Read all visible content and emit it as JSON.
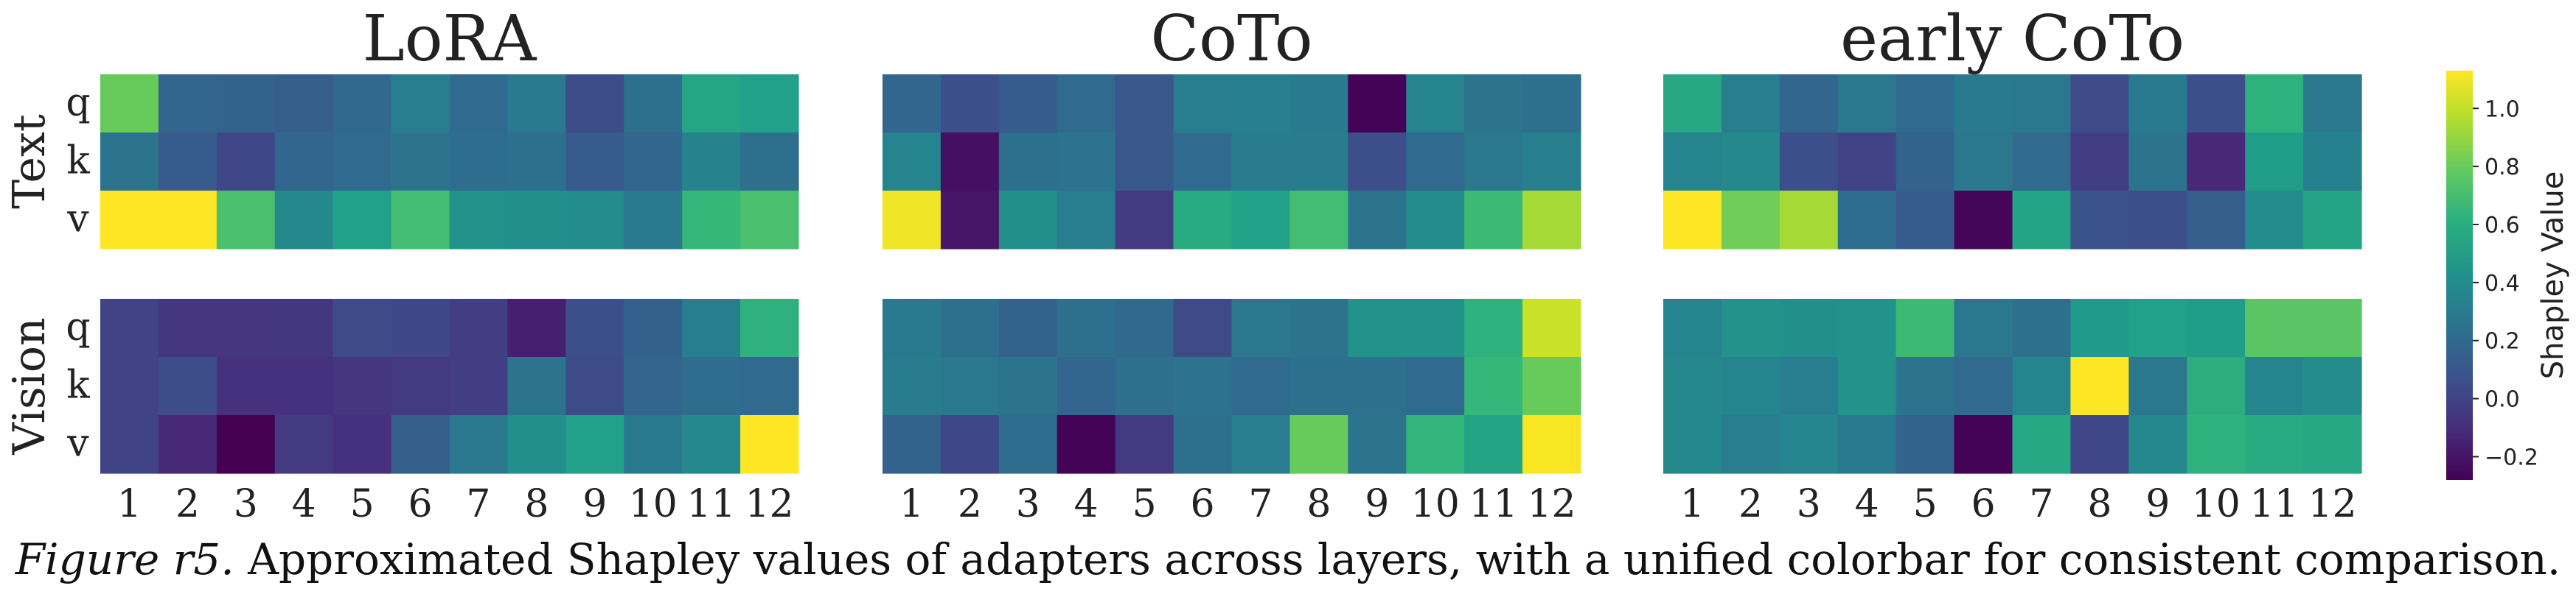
{
  "caption": {
    "figure_tag": "Figure r5.",
    "text": " Approximated Shapley values of adapters across layers, with a unified colorbar for consistent comparison."
  },
  "chart_data": {
    "type": "heatmap",
    "layers": [
      "1",
      "2",
      "3",
      "4",
      "5",
      "6",
      "7",
      "8",
      "9",
      "10",
      "11",
      "12"
    ],
    "groups": [
      {
        "name": "Text",
        "rows": [
          "q",
          "k",
          "v"
        ]
      },
      {
        "name": "Vision",
        "rows": [
          "q",
          "k",
          "v"
        ]
      }
    ],
    "colorbar": {
      "label": "Shapley Value",
      "range": [
        -0.28,
        1.13
      ],
      "ticks": [
        "1.0",
        "0.8",
        "0.6",
        "0.4",
        "0.2",
        "0.0",
        "−0.2"
      ],
      "tick_values": [
        1.0,
        0.8,
        0.6,
        0.4,
        0.2,
        0.0,
        -0.2
      ],
      "colormap": "viridis"
    },
    "panels": [
      {
        "title": "LoRA",
        "text": {
          "q": [
            0.8,
            0.18,
            0.16,
            0.14,
            0.19,
            0.32,
            0.2,
            0.3,
            0.05,
            0.24,
            0.55,
            0.52
          ],
          "k": [
            0.26,
            0.12,
            0.02,
            0.18,
            0.2,
            0.26,
            0.22,
            0.24,
            0.12,
            0.18,
            0.35,
            0.23
          ],
          "v": [
            1.13,
            1.13,
            0.72,
            0.38,
            0.52,
            0.7,
            0.44,
            0.42,
            0.4,
            0.3,
            0.66,
            0.72
          ]
        },
        "vision": {
          "q": [
            0.0,
            -0.06,
            -0.06,
            -0.05,
            0.04,
            0.02,
            -0.02,
            -0.16,
            0.06,
            0.15,
            0.33,
            0.62
          ],
          "k": [
            0.0,
            0.05,
            -0.08,
            -0.08,
            -0.06,
            -0.04,
            -0.02,
            0.26,
            0.04,
            0.17,
            0.22,
            0.2
          ],
          "v": [
            0.0,
            -0.12,
            -0.28,
            -0.04,
            -0.08,
            0.14,
            0.28,
            0.42,
            0.52,
            0.3,
            0.38,
            1.13
          ]
        }
      },
      {
        "title": "CoTo",
        "text": {
          "q": [
            0.18,
            0.06,
            0.12,
            0.2,
            0.1,
            0.32,
            0.33,
            0.3,
            -0.27,
            0.36,
            0.26,
            0.24
          ],
          "k": [
            0.36,
            -0.22,
            0.24,
            0.25,
            0.1,
            0.2,
            0.31,
            0.31,
            0.06,
            0.2,
            0.28,
            0.33
          ],
          "v": [
            1.1,
            -0.2,
            0.42,
            0.32,
            -0.04,
            0.58,
            0.52,
            0.7,
            0.26,
            0.4,
            0.68,
            0.94
          ]
        },
        "vision": {
          "q": [
            0.3,
            0.24,
            0.16,
            0.24,
            0.19,
            0.04,
            0.28,
            0.26,
            0.44,
            0.44,
            0.62,
            1.02
          ],
          "k": [
            0.31,
            0.28,
            0.26,
            0.18,
            0.23,
            0.25,
            0.2,
            0.24,
            0.24,
            0.2,
            0.66,
            0.8
          ],
          "v": [
            0.16,
            0.02,
            0.22,
            -0.27,
            -0.04,
            0.23,
            0.32,
            0.8,
            0.26,
            0.64,
            0.54,
            1.12
          ]
        }
      },
      {
        "title": "early CoTo",
        "text": {
          "q": [
            0.56,
            0.32,
            0.18,
            0.28,
            0.2,
            0.3,
            0.28,
            0.04,
            0.3,
            0.06,
            0.62,
            0.28
          ],
          "k": [
            0.36,
            0.38,
            0.06,
            0.0,
            0.16,
            0.28,
            0.2,
            -0.02,
            0.26,
            -0.12,
            0.5,
            0.34
          ],
          "v": [
            1.13,
            0.82,
            0.94,
            0.22,
            0.12,
            -0.26,
            0.54,
            0.08,
            0.06,
            0.14,
            0.4,
            0.54
          ]
        },
        "vision": {
          "q": [
            0.36,
            0.44,
            0.42,
            0.44,
            0.68,
            0.28,
            0.24,
            0.48,
            0.52,
            0.5,
            0.76,
            0.76
          ],
          "k": [
            0.38,
            0.36,
            0.32,
            0.44,
            0.26,
            0.2,
            0.36,
            1.13,
            0.28,
            0.6,
            0.36,
            0.4
          ],
          "v": [
            0.38,
            0.32,
            0.36,
            0.3,
            0.16,
            -0.27,
            0.56,
            0.02,
            0.38,
            0.62,
            0.58,
            0.56
          ]
        }
      }
    ]
  }
}
